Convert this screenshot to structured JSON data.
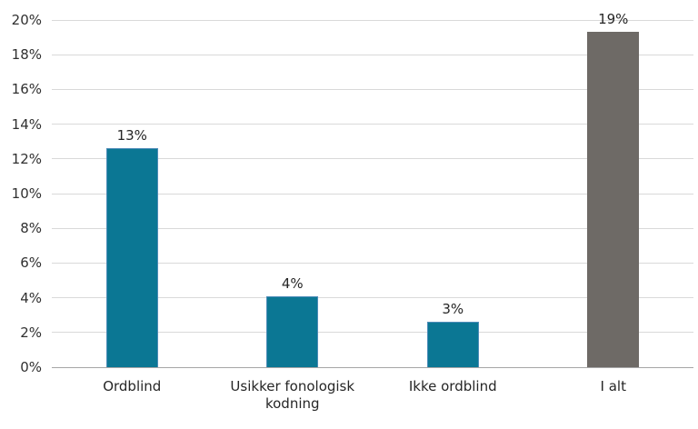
{
  "chart_data": {
    "type": "bar",
    "title": "",
    "xlabel": "",
    "ylabel": "",
    "categories": [
      "Ordblind",
      "Usikker fonologisk kodning",
      "Ikke ordblind",
      "I alt"
    ],
    "values": [
      12.6,
      4.1,
      2.6,
      19.3
    ],
    "value_labels": [
      "13%",
      "4%",
      "3%",
      "19%"
    ],
    "bar_fill_colors": [
      "#0b7794",
      "#0b7794",
      "#0b7794",
      "#6e6a66"
    ],
    "bar_border_colors": [
      "#4e8cb8",
      "#4e8cb8",
      "#4e8cb8",
      "#6e6a66"
    ],
    "ylim": [
      0,
      20
    ],
    "ytick_step": 2,
    "ytick_labels": [
      "0%",
      "2%",
      "4%",
      "6%",
      "8%",
      "10%",
      "12%",
      "14%",
      "16%",
      "18%",
      "20%"
    ],
    "grid": true,
    "legend": false,
    "colors": {
      "gridline": "#d9d9d9",
      "axis_line": "#a6a6a6",
      "tick_text": "#303030",
      "label_text": "#262626",
      "background": "#ffffff"
    }
  }
}
